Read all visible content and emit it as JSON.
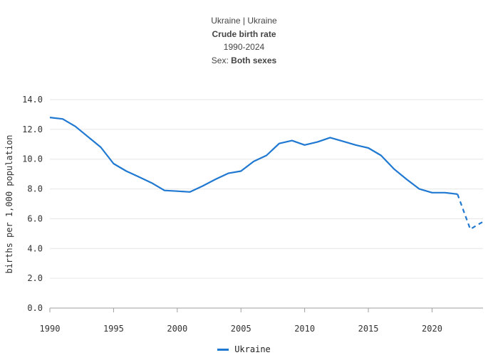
{
  "header": {
    "line1": "Ukraine | Ukraine",
    "title": "Crude birth rate",
    "period": "1990-2024",
    "sex_label": "Sex: ",
    "sex_value": "Both sexes"
  },
  "legend": {
    "label": "Ukraine"
  },
  "colors": {
    "series": "#1f78d1",
    "grid": "#e6e6e6",
    "axis": "#9e9e9e"
  },
  "chart_data": {
    "type": "line",
    "ylabel": "births per 1,000 population",
    "xlabel": "",
    "ylim": [
      0,
      14
    ],
    "xlim": [
      1990,
      2024
    ],
    "yticks": [
      "0.0",
      "2.0",
      "4.0",
      "6.0",
      "8.0",
      "10.0",
      "12.0",
      "14.0"
    ],
    "xticks": [
      "1990",
      "1995",
      "2000",
      "2005",
      "2010",
      "2015",
      "2020"
    ],
    "grid": "horizontal",
    "legend_position": "bottom",
    "series": [
      {
        "name": "Ukraine",
        "points": [
          {
            "x": 1990,
            "y": 12.8
          },
          {
            "x": 1991,
            "y": 12.7
          },
          {
            "x": 1992,
            "y": 12.2
          },
          {
            "x": 1993,
            "y": 11.5
          },
          {
            "x": 1994,
            "y": 10.8
          },
          {
            "x": 1995,
            "y": 9.7
          },
          {
            "x": 1996,
            "y": 9.2
          },
          {
            "x": 1997,
            "y": 8.8
          },
          {
            "x": 1998,
            "y": 8.4
          },
          {
            "x": 1999,
            "y": 7.9
          },
          {
            "x": 2000,
            "y": 7.85
          },
          {
            "x": 2001,
            "y": 7.8
          },
          {
            "x": 2002,
            "y": 8.2
          },
          {
            "x": 2003,
            "y": 8.65
          },
          {
            "x": 2004,
            "y": 9.05
          },
          {
            "x": 2005,
            "y": 9.2
          },
          {
            "x": 2006,
            "y": 9.85
          },
          {
            "x": 2007,
            "y": 10.25
          },
          {
            "x": 2008,
            "y": 11.05
          },
          {
            "x": 2009,
            "y": 11.25
          },
          {
            "x": 2010,
            "y": 10.95
          },
          {
            "x": 2011,
            "y": 11.15
          },
          {
            "x": 2012,
            "y": 11.45
          },
          {
            "x": 2013,
            "y": 11.2
          },
          {
            "x": 2014,
            "y": 10.95
          },
          {
            "x": 2015,
            "y": 10.75
          },
          {
            "x": 2016,
            "y": 10.25
          },
          {
            "x": 2017,
            "y": 9.35
          },
          {
            "x": 2018,
            "y": 8.65
          },
          {
            "x": 2019,
            "y": 8.0
          },
          {
            "x": 2020,
            "y": 7.75
          },
          {
            "x": 2021,
            "y": 7.75
          },
          {
            "x": 2022,
            "y": 7.65
          }
        ],
        "projected_points": [
          {
            "x": 2022,
            "y": 7.65
          },
          {
            "x": 2023,
            "y": 5.3
          },
          {
            "x": 2024,
            "y": 5.8
          }
        ]
      }
    ]
  }
}
